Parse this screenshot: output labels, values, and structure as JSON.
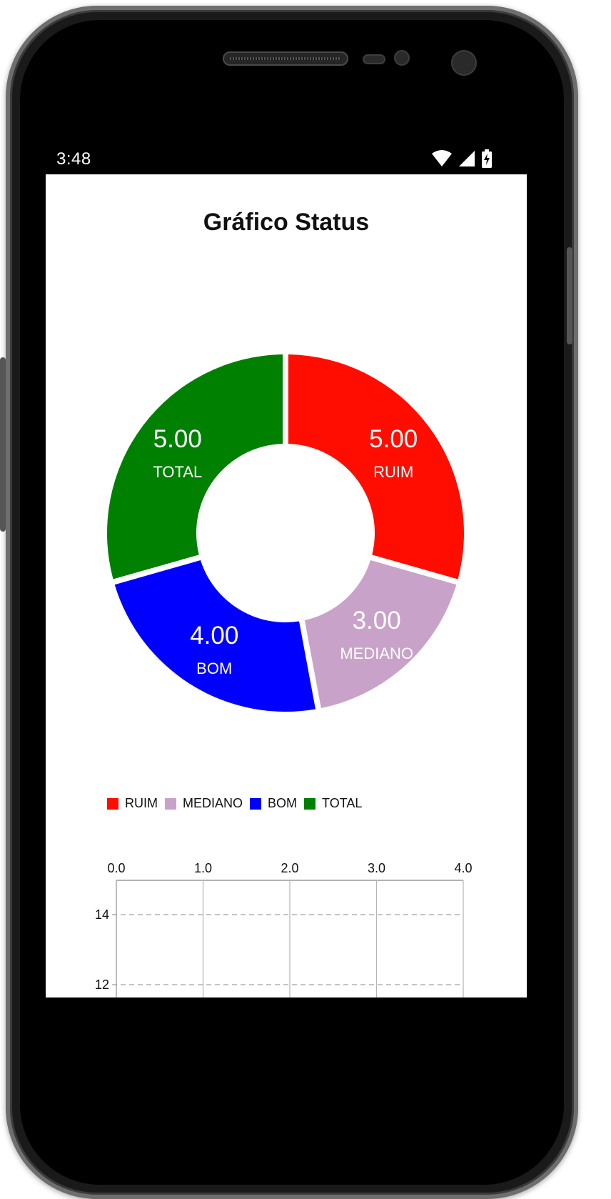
{
  "status_bar": {
    "time": "3:48"
  },
  "page": {
    "title": "Gráfico Status"
  },
  "colors": {
    "ruim": "#ff0d00",
    "mediano": "#c8a2c8",
    "bom": "#0000ff",
    "total": "#008000"
  },
  "icons": [
    "wifi-icon",
    "signal-icon",
    "battery-icon"
  ],
  "chart_data": [
    {
      "type": "pie",
      "style": "donut",
      "categories": [
        "RUIM",
        "MEDIANO",
        "BOM",
        "TOTAL"
      ],
      "values": [
        5.0,
        3.0,
        4.0,
        5.0
      ],
      "value_labels": [
        "5.00",
        "3.00",
        "4.00",
        "5.00"
      ],
      "colors": [
        "#ff0d00",
        "#c8a2c8",
        "#0000ff",
        "#008000"
      ],
      "legend": {
        "position": "bottom",
        "entries": [
          "RUIM",
          "MEDIANO",
          "BOM",
          "TOTAL"
        ]
      }
    },
    {
      "type": "line",
      "x_axis": {
        "position": "top",
        "range": [
          0,
          4
        ],
        "ticks": [
          "0.0",
          "1.0",
          "2.0",
          "3.0",
          "4.0"
        ]
      },
      "y_axis": {
        "position": "left",
        "visible_ticks": [
          "14",
          "12"
        ]
      },
      "grid": true,
      "series": []
    }
  ]
}
